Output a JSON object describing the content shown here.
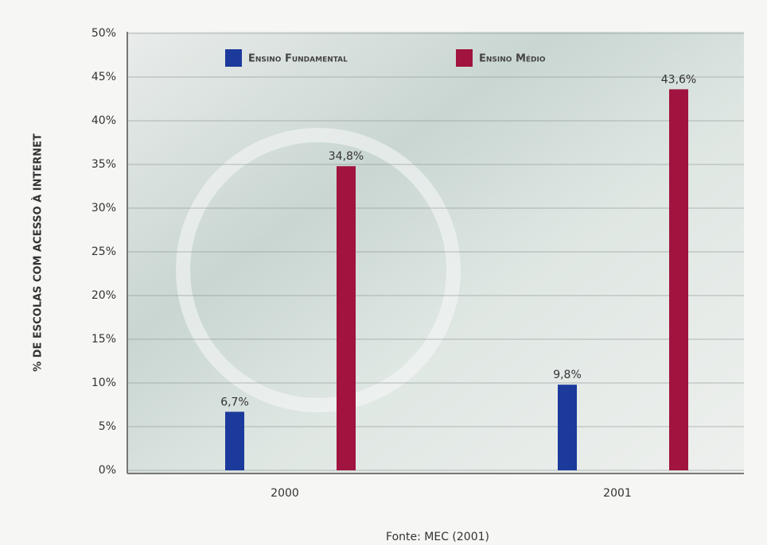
{
  "chart_data": {
    "type": "bar",
    "ylabel": "% DE ESCOLAS COM ACESSO À INTERNET",
    "source": "Fonte: MEC (2001)",
    "categories": [
      "2000",
      "2001"
    ],
    "series": [
      {
        "name": "Ensino Fundamental",
        "color": "#1c3a9c",
        "values": [
          6.7,
          9.8
        ],
        "value_labels": [
          "6,7%",
          "9,8%"
        ]
      },
      {
        "name": "Ensino Médio",
        "color": "#a0143f",
        "values": [
          34.8,
          43.6
        ],
        "value_labels": [
          "34,8%",
          "43,6%"
        ]
      }
    ],
    "ylim": [
      0,
      50
    ],
    "yticks": [
      {
        "value": 0,
        "label": "0%"
      },
      {
        "value": 5,
        "label": "5%"
      },
      {
        "value": 10,
        "label": "10%"
      },
      {
        "value": 15,
        "label": "15%"
      },
      {
        "value": 20,
        "label": "20%"
      },
      {
        "value": 25,
        "label": "25%"
      },
      {
        "value": 30,
        "label": "30%"
      },
      {
        "value": 35,
        "label": "35%"
      },
      {
        "value": 40,
        "label": "40%"
      },
      {
        "value": 45,
        "label": "45%"
      },
      {
        "value": 50,
        "label": "50%"
      }
    ],
    "grid": true
  }
}
